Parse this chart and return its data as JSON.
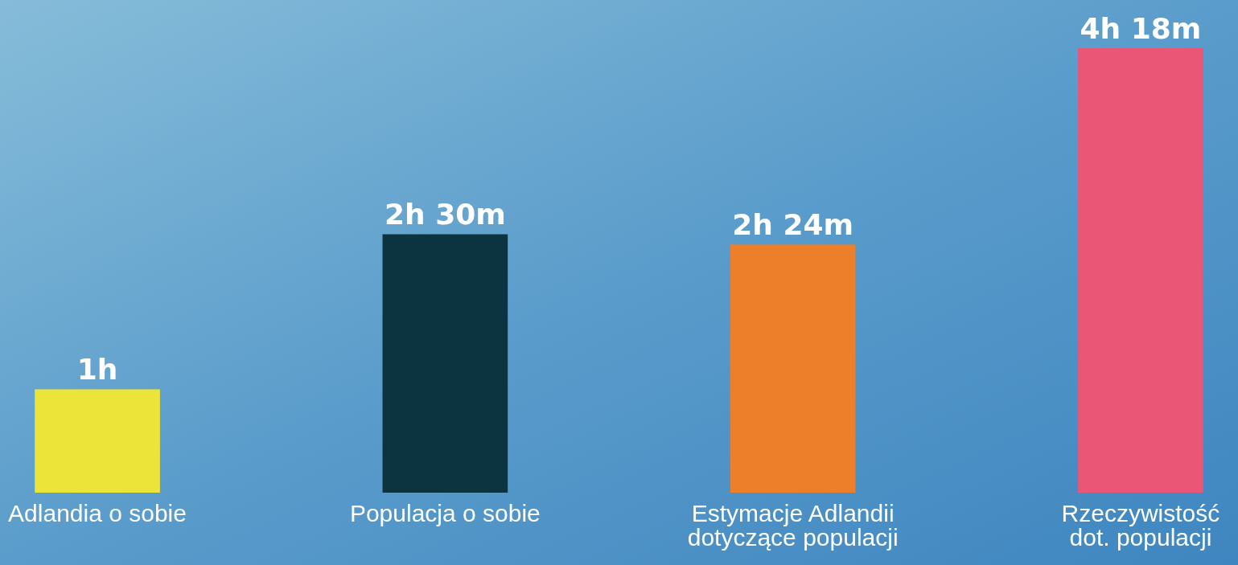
{
  "chart_data": {
    "type": "bar",
    "relative": false,
    "categories": [
      "Adlandia o sobie",
      "Populacja o sobie",
      "Estymacje Adlandii dotyczące populacji",
      "Rzeczywistość dot. populacji"
    ],
    "values": [
      1,
      2.5,
      2.4,
      4.3
    ],
    "colors": [
      "#ede43a",
      "#0b3440",
      "#ee7f2a",
      "#ea5675"
    ],
    "value_labels": [
      "1h",
      "2h 30m",
      "2h 24m",
      "4h 18m"
    ]
  }
}
